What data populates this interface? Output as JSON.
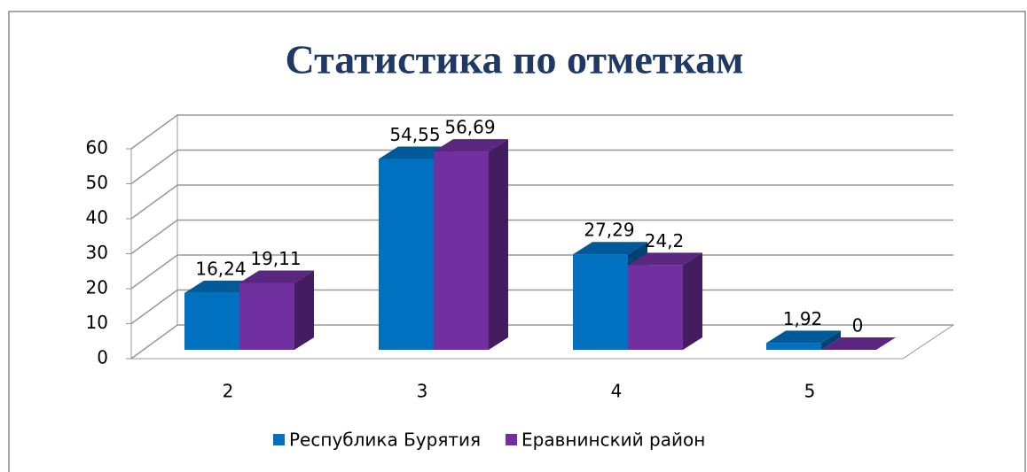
{
  "chart_data": {
    "type": "bar3d",
    "title": "Статистика по отметкам",
    "categories": [
      "2",
      "3",
      "4",
      "5"
    ],
    "series": [
      {
        "name": "Республика Бурятия",
        "color": "#0070c0",
        "values": [
          16.24,
          54.55,
          27.29,
          1.92
        ],
        "value_labels": [
          "16,24",
          "54,55",
          "27,29",
          "1,92"
        ]
      },
      {
        "name": "Еравнинский район",
        "color": "#7030a0",
        "values": [
          19.11,
          56.69,
          24.2,
          0
        ],
        "value_labels": [
          "19,11",
          "56,69",
          "24,2",
          "0"
        ]
      }
    ],
    "ylim": [
      0,
      60
    ],
    "yticks": [
      0,
      10,
      20,
      30,
      40,
      50,
      60
    ],
    "grid": true,
    "legend": "bottom"
  }
}
